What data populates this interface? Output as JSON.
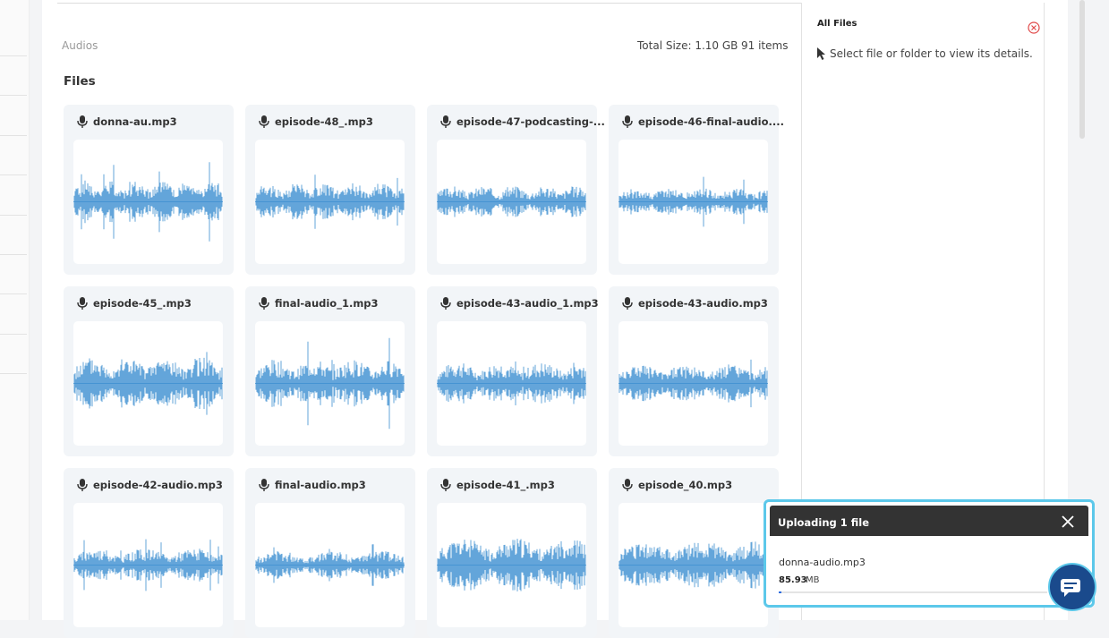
{
  "header": {
    "section": "Audios",
    "total_size": "Total Size: 1.10 GB",
    "item_count": "91 items"
  },
  "files_heading": "Files",
  "files": [
    "donna-au.mp3",
    "episode-48_.mp3",
    "episode-47-podcasting-...",
    "episode-46-final-audio....",
    "episode-45_.mp3",
    "final-audio_1.mp3",
    "episode-43-audio_1.mp3",
    "episode-43-audio.mp3",
    "episode-42-audio.mp3",
    "final-audio.mp3",
    "episode-41_.mp3",
    "episode_40.mp3"
  ],
  "details": {
    "title": "All Files",
    "hint": "Select file or folder to view its details."
  },
  "upload": {
    "title": "Uploading 1 file",
    "file_name": "donna-audio.mp3",
    "size": "85.93",
    "size_unit": "MB"
  }
}
